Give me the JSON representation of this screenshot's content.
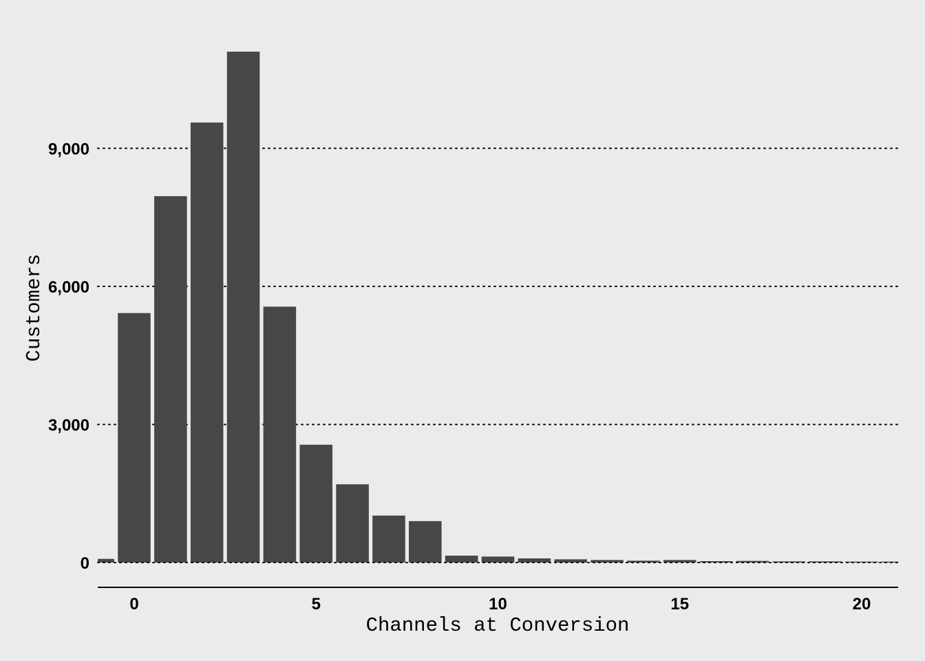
{
  "chart_data": {
    "type": "bar",
    "xlabel": "Channels at Conversion",
    "ylabel": "Customers",
    "x": [
      -1,
      0,
      1,
      2,
      3,
      4,
      5,
      6,
      7,
      8,
      9,
      10,
      11,
      12,
      13,
      14,
      15,
      16,
      17,
      18,
      19,
      20,
      21
    ],
    "values": [
      80,
      5420,
      7960,
      9560,
      11100,
      5560,
      2560,
      1700,
      1020,
      900,
      150,
      130,
      90,
      70,
      55,
      40,
      55,
      30,
      35,
      25,
      25,
      20,
      20
    ],
    "xlim": [
      -1,
      21
    ],
    "ylim": [
      0,
      11100
    ],
    "xticks": [
      0,
      5,
      10,
      15,
      20
    ],
    "xtick_labels": [
      "0",
      "5",
      "10",
      "15",
      "20"
    ],
    "yticks": [
      0,
      3000,
      6000,
      9000
    ],
    "ytick_labels": [
      "0",
      "3,000",
      "6,000",
      "9,000"
    ],
    "grid": "horizontal dotted",
    "bar_color": "#474747",
    "background_color": "#ebebeb"
  }
}
